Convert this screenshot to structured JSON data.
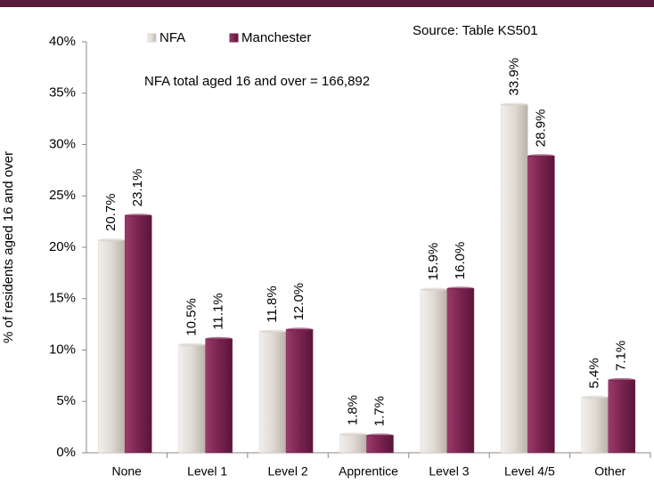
{
  "chart_data": {
    "type": "bar",
    "y_label": "% of residents aged 16 and over",
    "annotations": [
      "Source: Table KS501",
      "NFA total aged 16 and over =  166,892"
    ],
    "categories": [
      "None",
      "Level 1",
      "Level 2",
      "Apprentice",
      "Level 3",
      "Level 4/5",
      "Other"
    ],
    "series": [
      {
        "name": "NFA",
        "color": "#d8d2cb",
        "values": [
          20.7,
          10.5,
          11.8,
          1.8,
          15.9,
          33.9,
          5.4
        ],
        "value_labels": [
          "20.7%",
          "10.5%",
          "11.8%",
          "1.8%",
          "15.9%",
          "33.9%",
          "5.4%"
        ]
      },
      {
        "name": "Manchester",
        "color": "#7a2350",
        "values": [
          23.1,
          11.1,
          12.0,
          1.7,
          16.0,
          28.9,
          7.1
        ],
        "value_labels": [
          "23.1%",
          "11.1%",
          "12.0%",
          "1.7%",
          "16.0%",
          "28.9%",
          "7.1%"
        ]
      }
    ],
    "ylim": [
      0,
      40
    ],
    "yticks": [
      {
        "value": 0,
        "label": "0%"
      },
      {
        "value": 5,
        "label": "5%"
      },
      {
        "value": 10,
        "label": "10%"
      },
      {
        "value": 15,
        "label": "15%"
      },
      {
        "value": 20,
        "label": "20%"
      },
      {
        "value": 25,
        "label": "25%"
      },
      {
        "value": 30,
        "label": "30%"
      },
      {
        "value": 35,
        "label": "35%"
      },
      {
        "value": 40,
        "label": "40%"
      }
    ],
    "grid": false,
    "legend": "top"
  }
}
